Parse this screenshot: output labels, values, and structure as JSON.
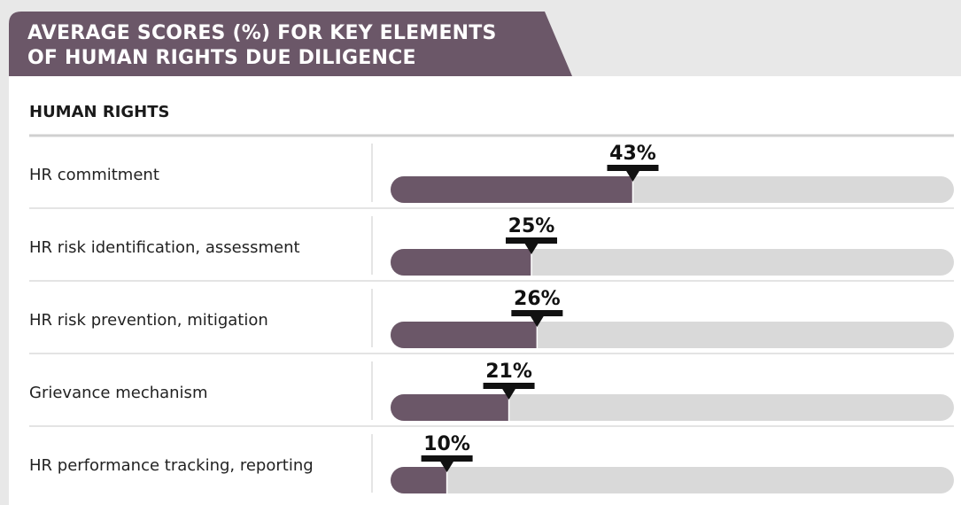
{
  "chart_data": {
    "type": "bar",
    "orientation": "horizontal",
    "title": "AVERAGE SCORES (%) FOR KEY ELEMENTS OF HUMAN RIGHTS DUE DILIGENCE",
    "subtitle": "HUMAN RIGHTS",
    "categories": [
      "HR commitment",
      "HR risk identification, assessment",
      "HR risk prevention, mitigation",
      "Grievance mechanism",
      "HR performance tracking, reporting"
    ],
    "values": [
      43,
      25,
      26,
      21,
      10
    ],
    "value_labels": [
      "43%",
      "25%",
      "26%",
      "21%",
      "10%"
    ],
    "color": "#6b5768",
    "track_color": "#d9d9d9",
    "xlim": [
      0,
      100
    ]
  }
}
